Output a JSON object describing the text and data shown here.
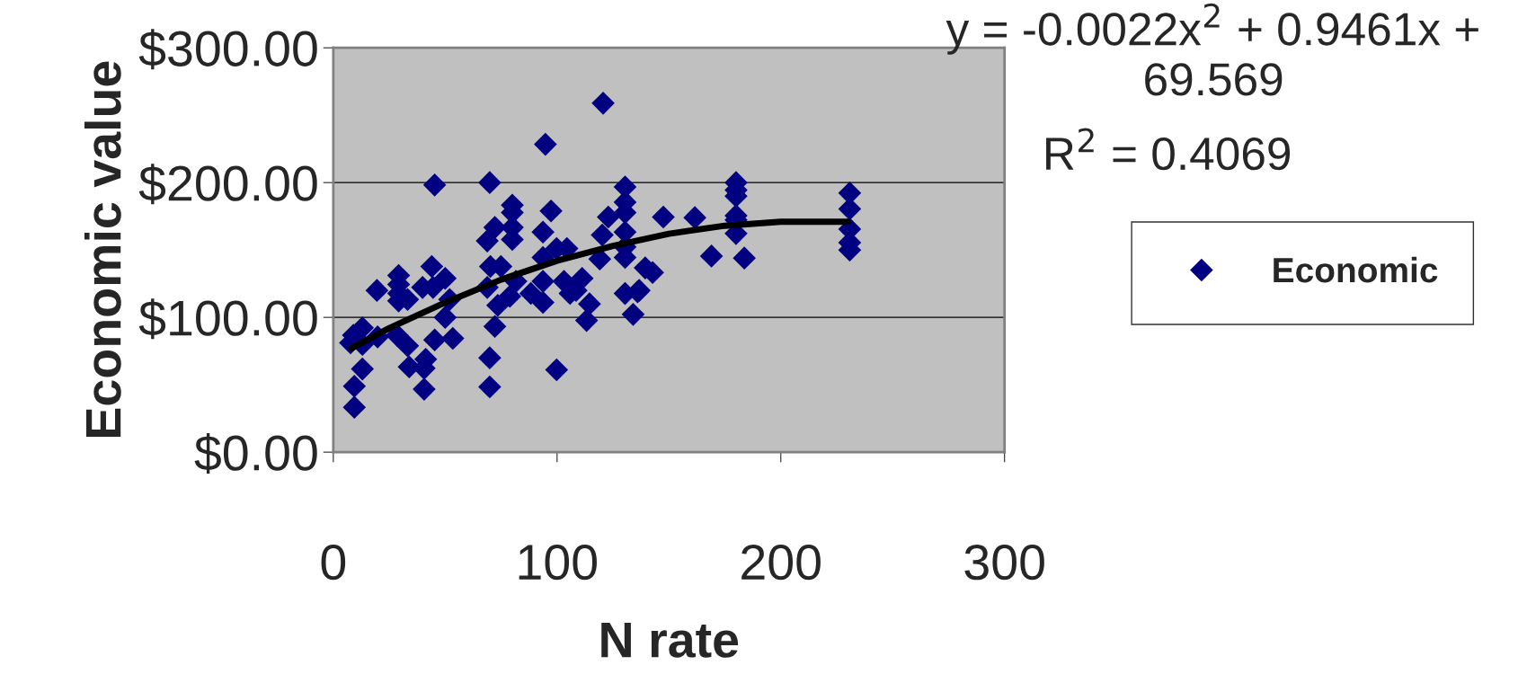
{
  "chart_data": {
    "type": "scatter",
    "xlabel": "N rate",
    "ylabel": "Economic value",
    "annotations": [
      "y = -0.0022x$^{2}$ + 0.9461x + 69.569",
      "R$^{2}$ = 0.4069"
    ],
    "xlim": [
      0,
      300
    ],
    "xticks": [
      0,
      100,
      200,
      300
    ],
    "ylim": [
      0,
      300
    ],
    "yticks": [
      {
        "value": 0,
        "label": "$0.00"
      },
      {
        "value": 100,
        "label": "$100.00"
      },
      {
        "value": 200,
        "label": "$200.00"
      },
      {
        "value": 300,
        "label": "$300.00"
      }
    ],
    "grid": "y",
    "legend": "right",
    "series": [
      {
        "name": "Economic",
        "color": "#000080",
        "marker": "diamond",
        "x": [
          120.6,
          94.8,
          45.3,
          69.9,
          130.4,
          130.4,
          130.4,
          130.4,
          130.4,
          130.4,
          134,
          136,
          139.4,
          142.7,
          147.5,
          122.9,
          120.2,
          119.1,
          130.4,
          114.5,
          113.2,
          111.2,
          108.5,
          105.8,
          104.4,
          99.8,
          103.1,
          97.3,
          93.7,
          93.7,
          93.7,
          93.7,
          88.3,
          99.8,
          80,
          80,
          80,
          80,
          72.2,
          68.8,
          70.2,
          74.9,
          68.8,
          73.5,
          78.9,
          81.6,
          72.2,
          69.9,
          69.9,
          44,
          50,
          39.9,
          44.6,
          52,
          50,
          53.4,
          45.3,
          29.2,
          29.2,
          29.2,
          29.2,
          33.2,
          19.5,
          28.5,
          33.2,
          33.9,
          41.3,
          40.6,
          40.6,
          13,
          9,
          7.7,
          19.8,
          13,
          13,
          9.4,
          9.4,
          180,
          180,
          180,
          180,
          180,
          180,
          161.6,
          169,
          183.7,
          230.8,
          230.8,
          230.8,
          230.8,
          230.8,
          136.7
        ],
        "values": [
          258.9,
          228.4,
          198.2,
          200,
          196.8,
          185.5,
          177.7,
          163.3,
          144.4,
          117.7,
          102.2,
          118.9,
          136.7,
          133.3,
          174.4,
          174.4,
          161.1,
          143.3,
          152.2,
          110,
          97.7,
          128.9,
          120,
          117.8,
          151.1,
          151.1,
          126.7,
          178.9,
          163.3,
          144.4,
          126.7,
          111.1,
          117.8,
          61.1,
          183.3,
          177.7,
          166.7,
          157.8,
          166.7,
          156.7,
          137.8,
          137.8,
          122.2,
          108.9,
          115.6,
          126.7,
          93.3,
          70,
          48.4,
          137.8,
          128.9,
          122.2,
          122.2,
          113.3,
          100,
          84.4,
          83.3,
          131.1,
          124.4,
          117.8,
          112.2,
          113.3,
          120,
          86.7,
          78.9,
          63.3,
          68.9,
          62.2,
          46.7,
          92.2,
          86.7,
          81.1,
          85.5,
          80,
          61.7,
          48.9,
          33.3,
          200,
          194.4,
          190,
          175.5,
          172.2,
          162.2,
          174,
          145.5,
          144,
          192.2,
          180.4,
          165.5,
          155.5,
          150,
          120
        ]
      },
      {
        "type": "line",
        "color": "#000000",
        "line_style": "solid",
        "marker": "none",
        "x": [
          8,
          25,
          50,
          75,
          100,
          125,
          150,
          175,
          200,
          230
        ],
        "values": [
          77,
          92,
          111,
          128,
          142,
          153,
          162,
          168,
          171,
          171
        ]
      }
    ]
  }
}
